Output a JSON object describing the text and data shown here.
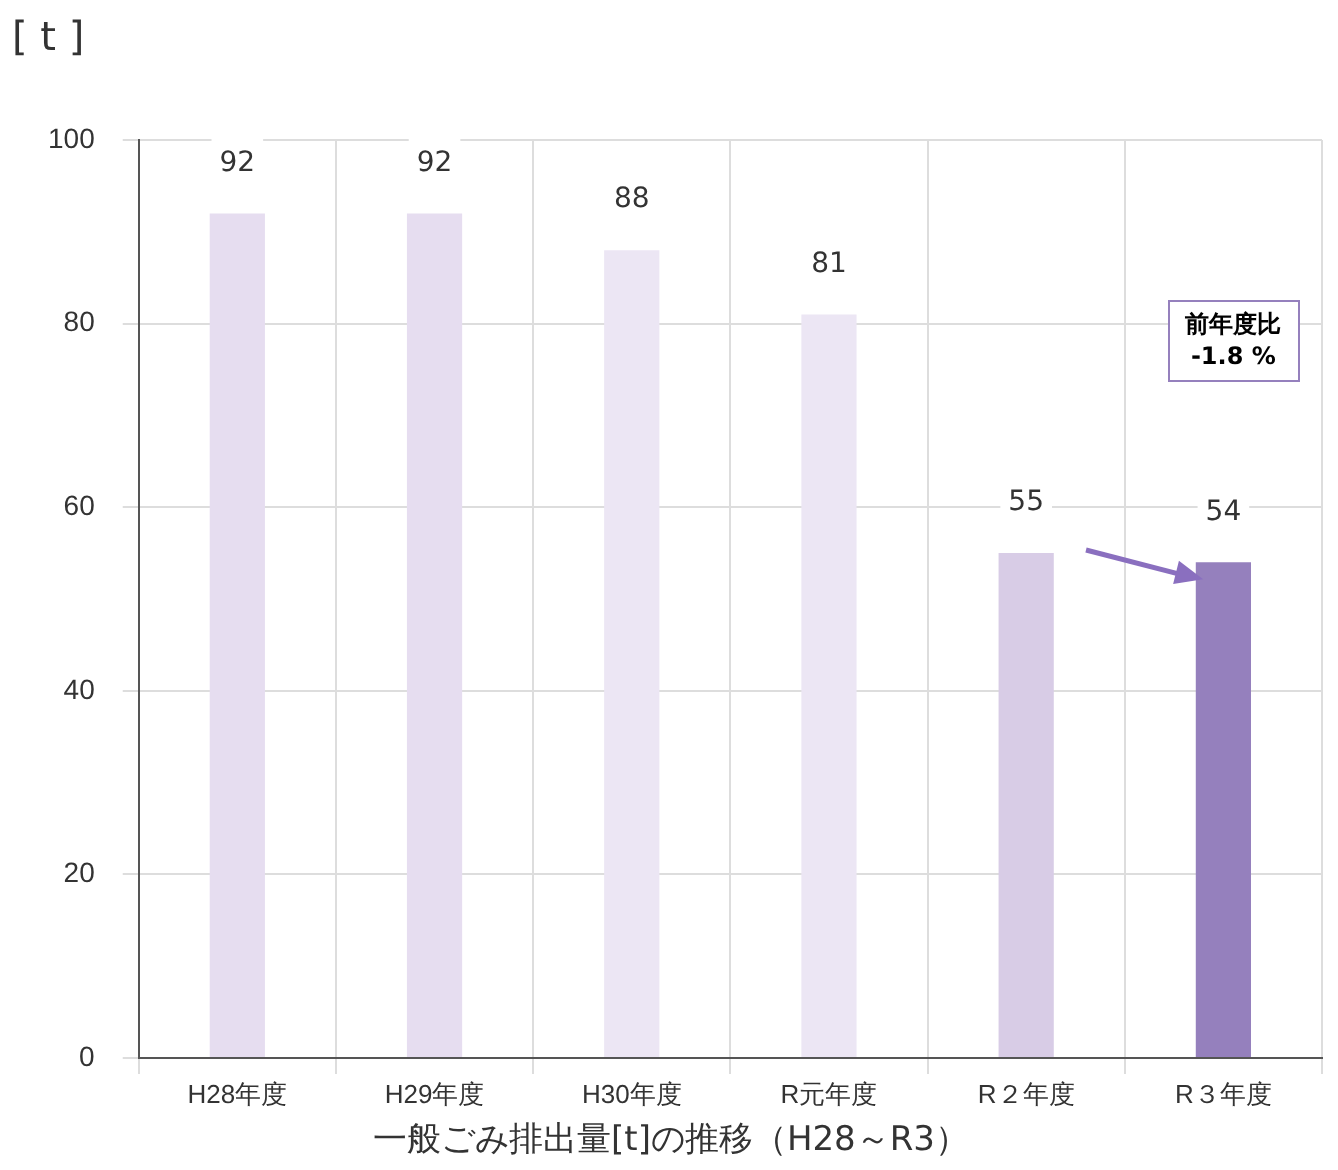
{
  "chart_data": {
    "type": "bar",
    "title": "一般ごみ排出量[t]の推移（H28～R3）",
    "ylabel": "[ t ]",
    "categories": [
      "H28年度",
      "H29年度",
      "H30年度",
      "R元年度",
      "R２年度",
      "R３年度"
    ],
    "values": [
      92,
      92,
      88,
      81,
      55,
      54
    ],
    "colors": [
      "#e6ddf0",
      "#e6ddf0",
      "#ece6f4",
      "#ece6f4",
      "#d8cce6",
      "#9580bd"
    ],
    "ylim": [
      0,
      100
    ],
    "yticks": [
      0,
      20,
      40,
      60,
      80,
      100
    ],
    "grid": true,
    "data_labels": true,
    "annotations": [
      "前年度比\n-1.8 %"
    ]
  }
}
